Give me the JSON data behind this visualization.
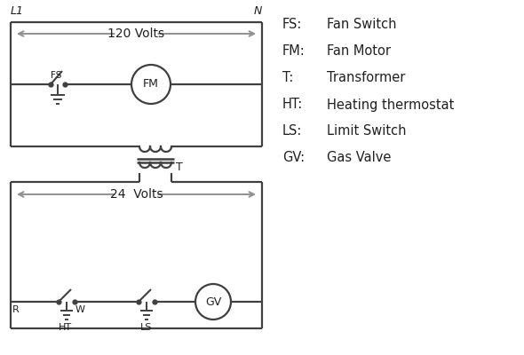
{
  "bg_color": "#ffffff",
  "line_color": "#404040",
  "arrow_color": "#909090",
  "text_color": "#202020",
  "legend_items": [
    [
      "FS:",
      "Fan Switch"
    ],
    [
      "FM:",
      "Fan Motor"
    ],
    [
      "T:",
      "Transformer"
    ],
    [
      "HT:",
      "Heating thermostat"
    ],
    [
      "LS:",
      "Limit Switch"
    ],
    [
      "GV:",
      "Gas Valve"
    ]
  ],
  "volt120": "120 Volts",
  "volt24": "24  Volts",
  "L1": "L1",
  "N": "N",
  "lw": 1.6
}
